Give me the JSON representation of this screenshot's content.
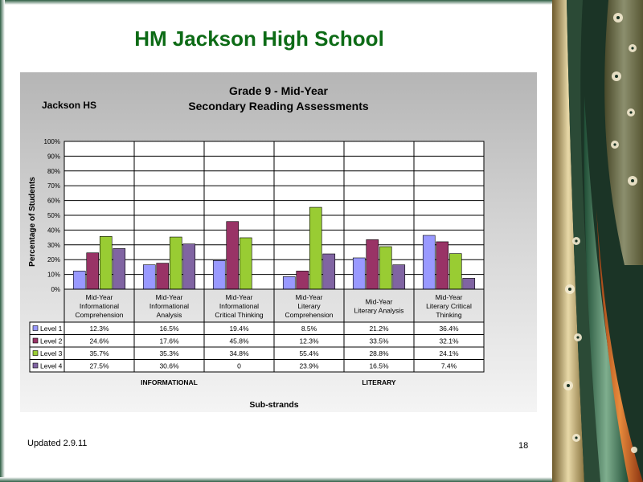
{
  "slide": {
    "title": "HM Jackson High School",
    "updated": "Updated  2.9.11",
    "page_number": "18"
  },
  "colors": {
    "title": "#0d6b16",
    "level_1": "#9999ff",
    "level_2": "#993366",
    "level_3": "#99cc33",
    "level_4": "#8064a2"
  },
  "chart_data": {
    "type": "bar",
    "title_line1": "Grade 9 - Mid-Year",
    "title_line2": "Secondary Reading Assessments",
    "school_label": "Jackson HS",
    "ylabel": "Percentage of Students",
    "xlabel": "Sub-strands",
    "ylim": [
      0,
      100
    ],
    "y_ticks": [
      "0%",
      "10%",
      "20%",
      "30%",
      "40%",
      "50%",
      "60%",
      "70%",
      "80%",
      "90%",
      "100%"
    ],
    "grid": true,
    "categories": [
      [
        "Mid-Year",
        "Informational",
        "Comprehension"
      ],
      [
        "Mid-Year",
        "Informational",
        "Analysis"
      ],
      [
        "Mid-Year",
        "Informational",
        "Critical Thinking"
      ],
      [
        "Mid-Year",
        "Literary",
        "Comprehension"
      ],
      [
        "Mid-Year",
        "Literary Analysis"
      ],
      [
        "Mid-Year",
        "Literary Critical",
        "Thinking"
      ]
    ],
    "groups": [
      "INFORMATIONAL",
      "LITERARY"
    ],
    "series": [
      {
        "name": "Level 1",
        "values": [
          12.3,
          16.5,
          19.4,
          8.5,
          21.2,
          36.4
        ],
        "labels": [
          "12.3%",
          "16.5%",
          "19.4%",
          "8.5%",
          "21.2%",
          "36.4%"
        ]
      },
      {
        "name": "Level 2",
        "values": [
          24.6,
          17.6,
          45.8,
          12.3,
          33.5,
          32.1
        ],
        "labels": [
          "24.6%",
          "17.6%",
          "45.8%",
          "12.3%",
          "33.5%",
          "32.1%"
        ]
      },
      {
        "name": "Level 3",
        "values": [
          35.7,
          35.3,
          34.8,
          55.4,
          28.8,
          24.1
        ],
        "labels": [
          "35.7%",
          "35.3%",
          "34.8%",
          "55.4%",
          "28.8%",
          "24.1%"
        ]
      },
      {
        "name": "Level 4",
        "values": [
          27.5,
          30.6,
          0,
          23.9,
          16.5,
          7.4
        ],
        "labels": [
          "27.5%",
          "30.6%",
          "0",
          "23.9%",
          "16.5%",
          "7.4%"
        ]
      }
    ]
  }
}
